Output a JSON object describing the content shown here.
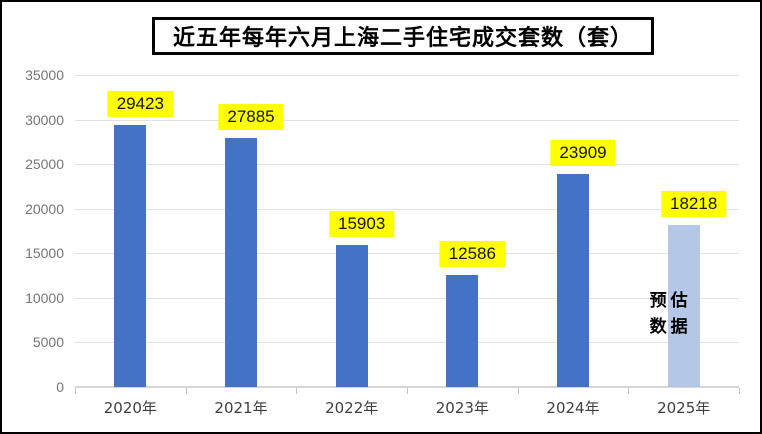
{
  "title": {
    "text": "近五年每年六月上海二手住宅成交套数（套）"
  },
  "chart_data": {
    "type": "bar",
    "title": "近五年每年六月上海二手住宅成交套数（套）",
    "categories": [
      "2020年",
      "2021年",
      "2022年",
      "2023年",
      "2024年",
      "2025年"
    ],
    "values": [
      29423,
      27885,
      15903,
      12586,
      23909,
      18218
    ],
    "data_labels": [
      "29423",
      "27885",
      "15903",
      "12586",
      "23909",
      "18218"
    ],
    "bar_colors": [
      "#4472C4",
      "#4472C4",
      "#4472C4",
      "#4472C4",
      "#4472C4",
      "#B4C7E7"
    ],
    "data_label_background": "#FFFF00",
    "xlabel": "",
    "ylabel": "",
    "ylim": [
      0,
      35000
    ],
    "yticks": [
      0,
      5000,
      10000,
      15000,
      20000,
      25000,
      30000,
      35000
    ],
    "grid": true,
    "legend": "none",
    "annotation": {
      "lines": [
        "预估",
        "数据"
      ],
      "bar_index": 5
    }
  },
  "colors": {
    "primary_bar": "#4472C4",
    "estimate_bar": "#B4C7E7",
    "label_highlight": "#FFFF00",
    "gridline": "#E2E2E2",
    "axis_text": "#767676",
    "frame_border": "#000000"
  }
}
